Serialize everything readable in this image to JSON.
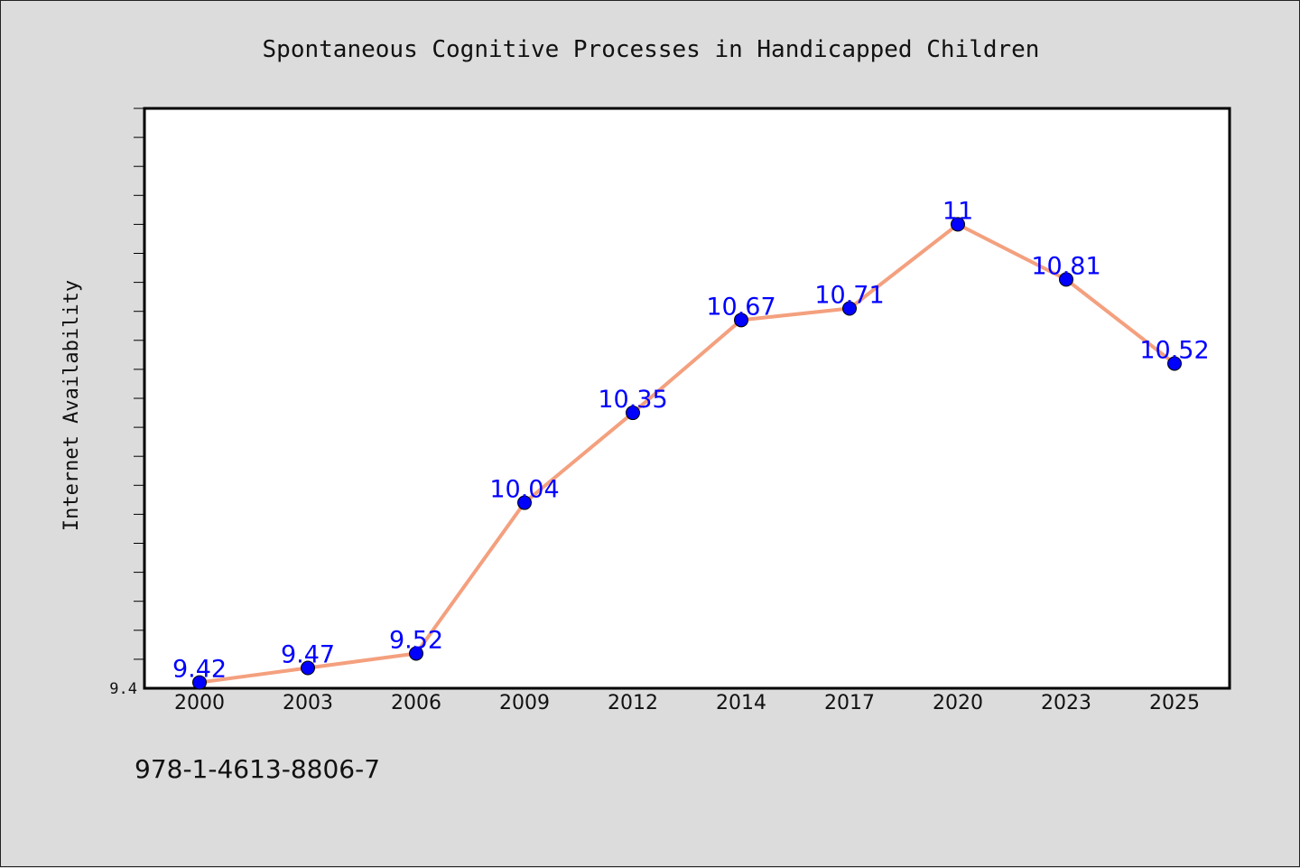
{
  "chart_data": {
    "type": "line",
    "title": "Spontaneous Cognitive Processes in Handicapped Children",
    "ylabel": "Internet Availability",
    "xlabel": "",
    "x": [
      "2000",
      "2003",
      "2006",
      "2009",
      "2012",
      "2014",
      "2017",
      "2020",
      "2023",
      "2025"
    ],
    "series": [
      {
        "values": [
          9.42,
          9.47,
          9.52,
          10.04,
          10.35,
          10.67,
          10.71,
          11,
          10.81,
          10.52
        ],
        "labels": [
          "9.42",
          "9.47",
          "9.52",
          "10.04",
          "10.35",
          "10.67",
          "10.71",
          "11",
          "10.81",
          "10.52"
        ]
      }
    ],
    "ylim": [
      9.4,
      11.4
    ],
    "y_tick_labels": [
      {
        "value": 9.4,
        "label": "9.4"
      }
    ],
    "y_minor_step": 0.1,
    "grid": false,
    "colors": {
      "line": "#f4a07e",
      "marker": "#0000ff",
      "label": "#0000ff",
      "background": "#dcdcdc",
      "plot_bg": "#ffffff"
    }
  },
  "footer": {
    "code": "978-1-4613-8806-7"
  }
}
